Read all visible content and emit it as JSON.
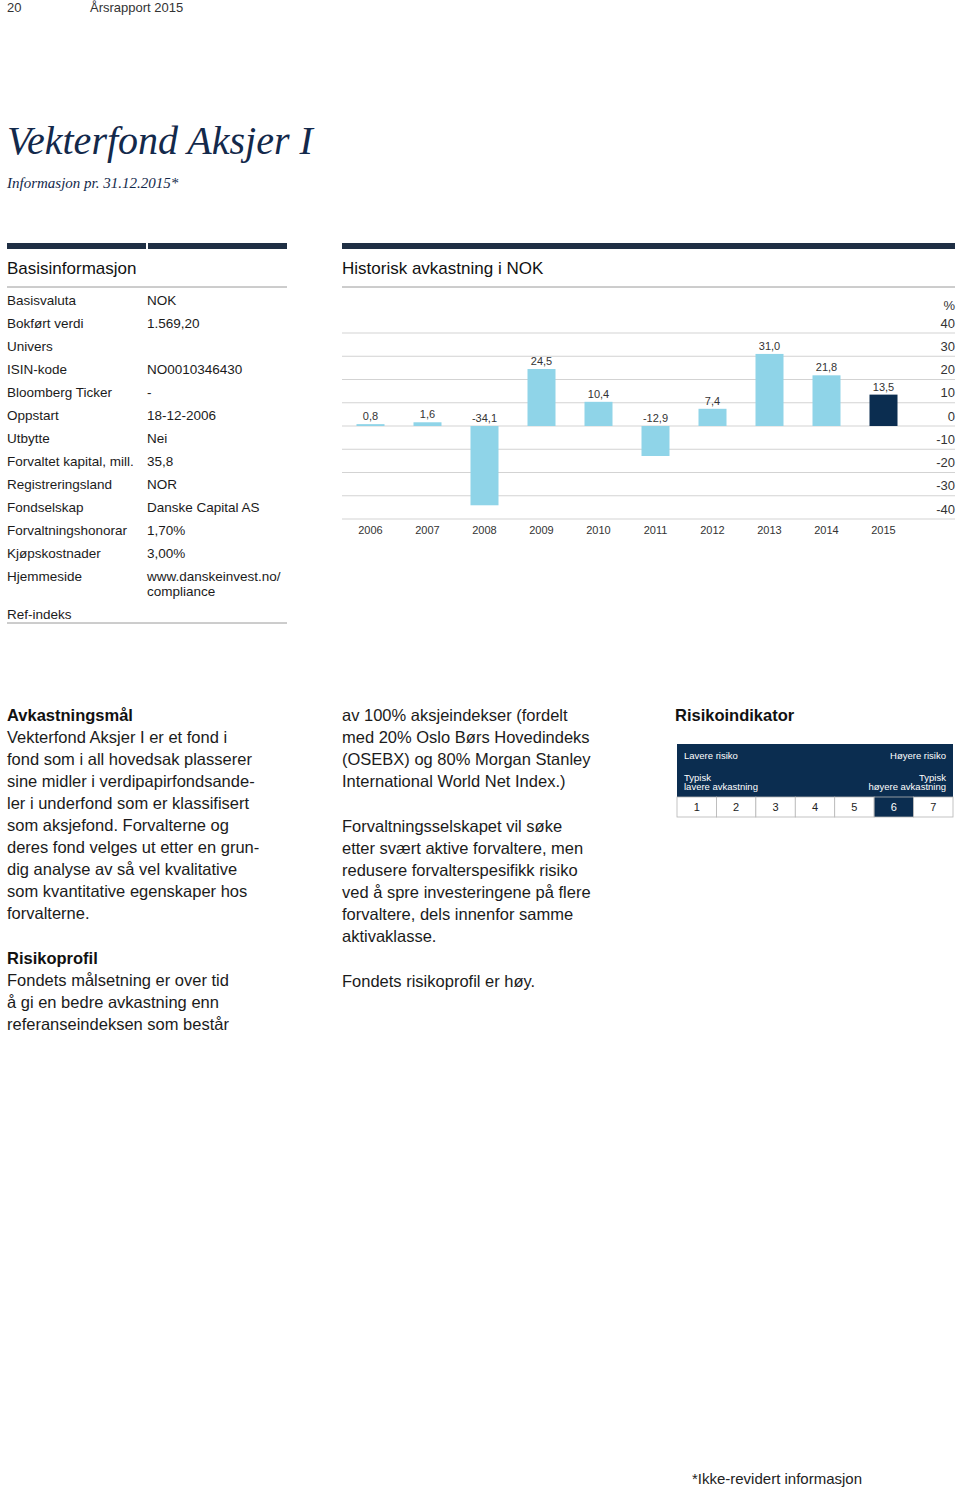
{
  "header": {
    "page": "20",
    "report": "Årsrapport 2015"
  },
  "title": "Vekterfond Aksjer I",
  "subtitle": "Informasjon pr. 31.12.2015*",
  "basic_info": {
    "heading": "Basisinformasjon",
    "rows": [
      {
        "label": "Basisvaluta",
        "value": [
          "NOK"
        ]
      },
      {
        "label": "Bokført verdi",
        "value": [
          "1.569,20"
        ]
      },
      {
        "label": "Univers"
      },
      {
        "label": "ISIN-kode",
        "value": [
          "NO0010346430"
        ]
      },
      {
        "label": "Bloomberg Ticker",
        "value": [
          "-"
        ]
      },
      {
        "label": "Oppstart",
        "value": [
          "18-12-2006"
        ]
      },
      {
        "label": "Utbytte",
        "value": [
          "Nei"
        ]
      },
      {
        "label": "Forvaltet kapital, mill.",
        "value": [
          "35,8"
        ]
      },
      {
        "label": "Registreringsland",
        "value": [
          "NOR"
        ]
      },
      {
        "label": "Fondselskap",
        "value": [
          "Danske Capital AS"
        ]
      },
      {
        "label": "Forvaltningshonorar",
        "value": [
          "1,70%"
        ]
      },
      {
        "label": "Kjøpskostnader",
        "value": [
          "3,00%"
        ]
      },
      {
        "label": "Hjemmeside",
        "value": [
          "www.danskeinvest.no/",
          "compliance"
        ]
      },
      {
        "label": "Ref-indeks"
      }
    ]
  },
  "chart_data": {
    "type": "bar",
    "title": "Historisk avkastning i NOK",
    "y_label": "%",
    "categories": [
      "2006",
      "2007",
      "2008",
      "2009",
      "2010",
      "2011",
      "2012",
      "2013",
      "2014",
      "2015"
    ],
    "values": [
      0.8,
      1.6,
      -34.1,
      24.5,
      10.4,
      -12.9,
      7.4,
      31.0,
      21.8,
      13.5
    ],
    "value_labels": [
      "0,8",
      "1,6",
      "-34,1",
      "24,5",
      "10,4",
      "-12,9",
      "7,4",
      "31,0",
      "21,8",
      "13,5"
    ],
    "colors": [
      "#8fd4e8",
      "#8fd4e8",
      "#8fd4e8",
      "#8fd4e8",
      "#8fd4e8",
      "#8fd4e8",
      "#8fd4e8",
      "#8fd4e8",
      "#8fd4e8",
      "#0b2d50"
    ],
    "ylim": [
      -40,
      40
    ],
    "yticks": [
      -40,
      -30,
      -20,
      -10,
      0,
      10,
      20,
      30,
      40
    ],
    "grid": true,
    "data_labels": true
  },
  "text_columns": [
    [
      {
        "heading": "Avkastningsmål",
        "lines": [
          "Vekterfond Aksjer I er et fond i",
          "fond som i all hovedsak plasserer",
          "sine midler i verdipapirfondsande-",
          "ler i underfond som er klassifisert",
          "som aksjefond. Forvalterne og",
          "deres fond velges ut etter en grun-",
          "dig analyse av så vel kvalitative",
          "som kvantitative egenskaper hos",
          "forvalterne."
        ]
      },
      {
        "heading": "Risikoprofil",
        "lines": [
          "Fondets målsetning er over tid",
          "å gi en bedre avkastning enn",
          "referanseindeksen som består"
        ]
      }
    ],
    [
      {
        "lines": [
          "av 100% aksjeindekser (fordelt",
          "med 20% Oslo Børs Hovedindeks",
          "(OSEBX) og 80% Morgan Stanley",
          "International World Net Index.)"
        ]
      },
      {
        "lines": [
          "Forvaltningsselskapet vil søke",
          "etter svært aktive forvaltere, men",
          "redusere forvalterspesifikk risiko",
          "ved å spre investeringene på flere",
          "forvaltere, dels innenfor samme",
          "aktivaklasse."
        ]
      },
      {
        "lines": [
          "Fondets risikoprofil er høy."
        ]
      }
    ]
  ],
  "risk_indicator": {
    "heading": "Risikoindikator",
    "lower_risk": "Lavere risiko",
    "higher_risk": "Høyere risiko",
    "lower_return": [
      "Typisk",
      "lavere avkastning"
    ],
    "higher_return": [
      "Typisk",
      "høyere avkastning"
    ],
    "levels": [
      "1",
      "2",
      "3",
      "4",
      "5",
      "6",
      "7"
    ],
    "selected": "6"
  },
  "footnote": "*Ikke-revidert informasjon"
}
